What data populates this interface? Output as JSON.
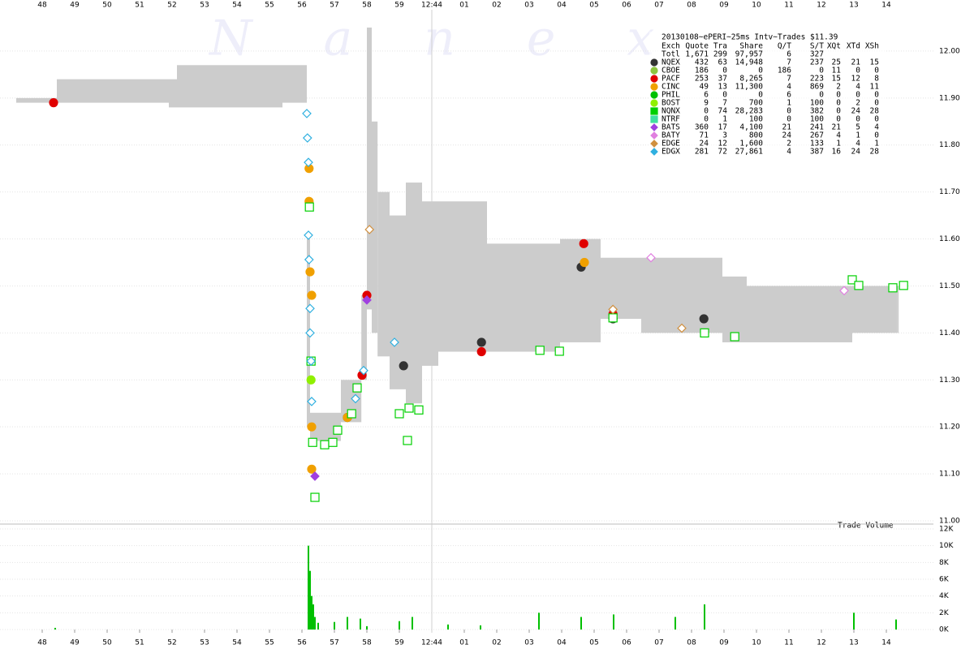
{
  "chart_data": {
    "type": "scatter",
    "watermark": "Nanex",
    "annotation": "Trade Volume",
    "xlim": [
      46.7,
      75.45
    ],
    "xticks": [
      48,
      49,
      50,
      51,
      52,
      53,
      54,
      55,
      56,
      57,
      58,
      59,
      {
        "value": 60,
        "label": "12:44"
      },
      {
        "value": 61,
        "label": "01"
      },
      {
        "value": 62,
        "label": "02"
      },
      {
        "value": 63,
        "label": "03"
      },
      {
        "value": 64,
        "label": "04"
      },
      {
        "value": 65,
        "label": "05"
      },
      {
        "value": 66,
        "label": "06"
      },
      {
        "value": 67,
        "label": "07"
      },
      {
        "value": 68,
        "label": "08"
      },
      {
        "value": 69,
        "label": "09"
      },
      {
        "value": 70,
        "label": "10"
      },
      {
        "value": 71,
        "label": "11"
      },
      {
        "value": 72,
        "label": "12"
      },
      {
        "value": 73,
        "label": "13"
      },
      {
        "value": 74,
        "label": "14"
      }
    ],
    "vlines": [
      60
    ],
    "ylim": [
      11.0,
      12.1
    ],
    "yticks": [
      {
        "value": 11.0,
        "label": "11.00"
      },
      {
        "value": 11.1,
        "label": "11.10"
      },
      {
        "value": 11.2,
        "label": "11.20"
      },
      {
        "value": 11.3,
        "label": "11.30"
      },
      {
        "value": 11.4,
        "label": "11.40"
      },
      {
        "value": 11.5,
        "label": "11.50"
      },
      {
        "value": 11.6,
        "label": "11.60"
      },
      {
        "value": 11.7,
        "label": "11.70"
      },
      {
        "value": 11.8,
        "label": "11.80"
      },
      {
        "value": 11.9,
        "label": "11.90"
      },
      {
        "value": 12.0,
        "label": "12.00"
      }
    ],
    "y2lim": [
      0,
      12000
    ],
    "y2ticks": [
      {
        "value": 0,
        "label": "0K"
      },
      {
        "value": 2000,
        "label": "2K"
      },
      {
        "value": 4000,
        "label": "4K"
      },
      {
        "value": 6000,
        "label": "6K"
      },
      {
        "value": 8000,
        "label": "8K"
      },
      {
        "value": 10000,
        "label": "10K"
      },
      {
        "value": 12000,
        "label": "12K"
      }
    ],
    "grid": true,
    "band": {
      "color": "#cccccc",
      "x": [
        47.2,
        48.45,
        51.9,
        52.15,
        55.4,
        56.15,
        56.25,
        56.35,
        57.2,
        57.83,
        58.0,
        58.15,
        58.33,
        58.7,
        59.2,
        59.7,
        60.2,
        61.7,
        63.95,
        65.2,
        66.45,
        68.95,
        69.7,
        72.95,
        74.33
      ],
      "high": [
        11.9,
        11.94,
        11.94,
        11.97,
        11.97,
        11.6,
        11.23,
        11.23,
        11.3,
        11.48,
        12.05,
        11.85,
        11.7,
        11.65,
        11.72,
        11.68,
        11.68,
        11.59,
        11.6,
        11.56,
        11.56,
        11.52,
        11.5,
        11.5,
        11.5
      ],
      "low": [
        11.89,
        11.89,
        11.88,
        11.88,
        11.89,
        11.2,
        11.17,
        11.17,
        11.21,
        11.3,
        11.45,
        11.4,
        11.35,
        11.28,
        11.25,
        11.33,
        11.36,
        11.36,
        11.38,
        11.43,
        11.4,
        11.38,
        11.38,
        11.4,
        11.4
      ]
    },
    "volume": {
      "axis": "y2",
      "color": "#00c000",
      "x": [
        48.4,
        56.2,
        56.25,
        56.3,
        56.35,
        56.4,
        56.5,
        57.0,
        57.4,
        57.8,
        58.0,
        59.0,
        59.4,
        60.5,
        61.5,
        63.3,
        64.6,
        65.6,
        67.5,
        68.4,
        73.0,
        74.3
      ],
      "values": [
        200,
        10000,
        7000,
        4000,
        3000,
        1500,
        800,
        900,
        1500,
        1300,
        400,
        1000,
        1500,
        600,
        500,
        2000,
        1500,
        1800,
        1500,
        3000,
        2000,
        1200
      ]
    },
    "series": [
      {
        "name": "NQEX",
        "color": "#333333",
        "marker": "circle",
        "filled": true,
        "x": [
          57.4,
          59.13,
          61.53,
          64.6,
          65.58,
          68.38
        ],
        "values": [
          11.22,
          11.33,
          11.38,
          11.54,
          11.43,
          11.43
        ]
      },
      {
        "name": "CBOE",
        "color": "#8cc63f",
        "marker": "circle",
        "filled": true,
        "x": [],
        "values": []
      },
      {
        "name": "PACF",
        "color": "#e00000",
        "marker": "circle",
        "filled": true,
        "x": [
          48.35,
          57.85,
          61.53,
          64.68,
          65.58,
          58.0
        ],
        "values": [
          11.89,
          11.31,
          11.36,
          11.59,
          11.44,
          11.48
        ]
      },
      {
        "name": "CINC",
        "color": "#f0a000",
        "marker": "circle",
        "filled": true,
        "x": [
          56.22,
          56.22,
          56.25,
          56.3,
          56.3,
          56.3,
          57.4,
          64.7
        ],
        "values": [
          11.75,
          11.68,
          11.53,
          11.48,
          11.2,
          11.11,
          11.22,
          11.55
        ]
      },
      {
        "name": "PHIL",
        "color": "#00c000",
        "marker": "circle",
        "filled": true,
        "x": [],
        "values": []
      },
      {
        "name": "BOST",
        "color": "#90f000",
        "marker": "circle",
        "filled": true,
        "x": [
          56.28
        ],
        "values": [
          11.3
        ]
      },
      {
        "name": "NQNX",
        "color": "#00d000",
        "marker": "square",
        "filled": false,
        "x": [
          56.23,
          56.28,
          56.33,
          56.4,
          56.7,
          56.95,
          57.1,
          57.53,
          57.7,
          59.0,
          59.3,
          59.6,
          59.25,
          63.33,
          63.93,
          65.58,
          68.4,
          69.33,
          72.95,
          73.15,
          74.2,
          74.53
        ],
        "values": [
          11.668,
          11.34,
          11.167,
          11.05,
          11.162,
          11.167,
          11.193,
          11.228,
          11.283,
          11.228,
          11.24,
          11.236,
          11.171,
          11.363,
          11.361,
          11.432,
          11.4,
          11.392,
          11.513,
          11.501,
          11.496,
          11.501
        ]
      },
      {
        "name": "NTRF",
        "color": "#40e0a0",
        "marker": "square",
        "filled": true,
        "x": [],
        "values": []
      },
      {
        "name": "BATS",
        "color": "#a040e0",
        "marker": "diamond",
        "filled": true,
        "x": [
          56.4,
          58.0
        ],
        "values": [
          11.095,
          11.47
        ]
      },
      {
        "name": "BATY",
        "color": "#e080e0",
        "marker": "diamond",
        "filled": false,
        "x": [
          66.75,
          72.7
        ],
        "values": [
          11.56,
          11.49
        ]
      },
      {
        "name": "EDGE",
        "color": "#d09040",
        "marker": "diamond",
        "filled": false,
        "x": [
          58.08,
          67.7,
          65.58
        ],
        "values": [
          11.62,
          11.41,
          11.45
        ]
      },
      {
        "name": "EDGX",
        "color": "#30b0e0",
        "marker": "diamond",
        "filled": false,
        "x": [
          56.15,
          56.17,
          56.2,
          56.2,
          56.22,
          56.25,
          56.25,
          56.28,
          56.3,
          57.9,
          57.65,
          58.85
        ],
        "values": [
          11.867,
          11.815,
          11.763,
          11.608,
          11.556,
          11.452,
          11.4,
          11.34,
          11.254,
          11.32,
          11.26,
          11.38
        ]
      }
    ],
    "stats": {
      "title": "20130108~ePERI~25ms Intv~Trades $11.39",
      "columns": [
        "Exch",
        "Quote",
        "Tra",
        "Share",
        "Q/T",
        "S/T",
        "XQt",
        "XTd",
        "XSh"
      ],
      "total": {
        "label": "Totl",
        "cells": [
          "1,671",
          "299",
          "97,957",
          "6",
          "327"
        ]
      },
      "rows": [
        [
          "432",
          "63",
          "14,948",
          "7",
          "237",
          "25",
          "21",
          "15"
        ],
        [
          "186",
          "0",
          "0",
          "186",
          "0",
          "11",
          "0",
          "0"
        ],
        [
          "253",
          "37",
          "8,265",
          "7",
          "223",
          "15",
          "12",
          "8"
        ],
        [
          "49",
          "13",
          "11,300",
          "4",
          "869",
          "2",
          "4",
          "11"
        ],
        [
          "6",
          "0",
          "0",
          "6",
          "0",
          "0",
          "0",
          "0"
        ],
        [
          "9",
          "7",
          "700",
          "1",
          "100",
          "0",
          "2",
          "0"
        ],
        [
          "0",
          "74",
          "28,283",
          "0",
          "382",
          "0",
          "24",
          "28"
        ],
        [
          "0",
          "1",
          "100",
          "0",
          "100",
          "0",
          "0",
          "0"
        ],
        [
          "360",
          "17",
          "4,100",
          "21",
          "241",
          "21",
          "5",
          "4"
        ],
        [
          "71",
          "3",
          "800",
          "24",
          "267",
          "4",
          "1",
          "0"
        ],
        [
          "24",
          "12",
          "1,600",
          "2",
          "133",
          "1",
          "4",
          "1"
        ],
        [
          "281",
          "72",
          "27,861",
          "4",
          "387",
          "16",
          "24",
          "28"
        ]
      ]
    }
  }
}
